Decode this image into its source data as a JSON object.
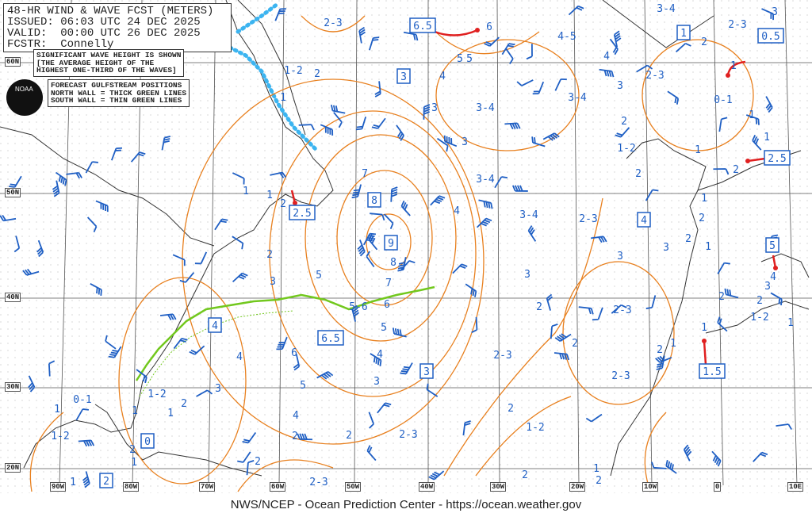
{
  "header": {
    "title": "48-HR WIND & WAVE FCST (METERS)",
    "issued": "ISSUED: 06:03 UTC 24 DEC 2025",
    "valid": "VALID:  00:00 UTC 26 DEC 2025",
    "forecaster": "FCSTR:  Connelly"
  },
  "notes": {
    "wave_height": [
      "SIGNIFICANT WAVE HEIGHT IS SHOWN",
      "[THE AVERAGE HEIGHT OF THE",
      "HIGHEST ONE-THIRD OF THE WAVES]"
    ],
    "gulfstream": [
      "FORECAST GULFSTREAM POSITIONS",
      "NORTH WALL = THICK GREEN LINES",
      "SOUTH WALL = THIN GREEN LINES"
    ]
  },
  "logo": "NOAA",
  "footer": "NWS/NCEP - Ocean Prediction Center - https://ocean.weather.gov",
  "lat_labels": [
    "60N",
    "50N",
    "40N",
    "30N",
    "20N"
  ],
  "lon_labels": [
    "90W",
    "80W",
    "70W",
    "60W",
    "50W",
    "40W",
    "30W",
    "20W",
    "10W",
    "0",
    "10E"
  ],
  "boxed_wave_heights": [
    "6.5",
    "3",
    "1",
    "0.5",
    "2.5",
    "2.5",
    "8",
    "9",
    "4",
    "4",
    "6.5",
    "3",
    "0",
    "2",
    "1.5",
    "5"
  ],
  "wave_height_labels": [
    "2-3",
    "1-2",
    "2",
    "1",
    "4",
    "3",
    "3-4",
    "5",
    "4-5",
    "4",
    "3-4",
    "2-3",
    "2",
    "1",
    "3",
    "3",
    "3-4",
    "2-3",
    "0-1",
    "1",
    "1",
    "2",
    "1-2",
    "1",
    "2",
    "3-4",
    "3",
    "7",
    "4",
    "3-4",
    "2-3",
    "8",
    "7",
    "5",
    "3",
    "2",
    "1",
    "1",
    "2",
    "5-6",
    "6",
    "5",
    "6",
    "4",
    "4",
    "3",
    "5",
    "4",
    "2",
    "2",
    "2-3",
    "2-3",
    "2",
    "3",
    "3",
    "2",
    "1",
    "2-3",
    "2-3",
    "2",
    "2",
    "1-2",
    "2",
    "2",
    "1",
    "1",
    "1-2",
    "2",
    "1",
    "3",
    "4",
    "2",
    "1",
    "2",
    "3",
    "2",
    "2",
    "1",
    "3",
    "2",
    "1",
    "1-2",
    "0-1",
    "1",
    "1-2",
    "1",
    "1",
    "2",
    "1",
    "2",
    "2-3",
    "6",
    "5"
  ],
  "colors": {
    "wind_barbs": "#1f5fc4",
    "wave_contours": "#e8801f",
    "gulfstream": "#72c81e",
    "ice_edge": "#3cb4f0",
    "storm_track": "#e02020",
    "coastline": "#333333",
    "grid": "#555555"
  }
}
